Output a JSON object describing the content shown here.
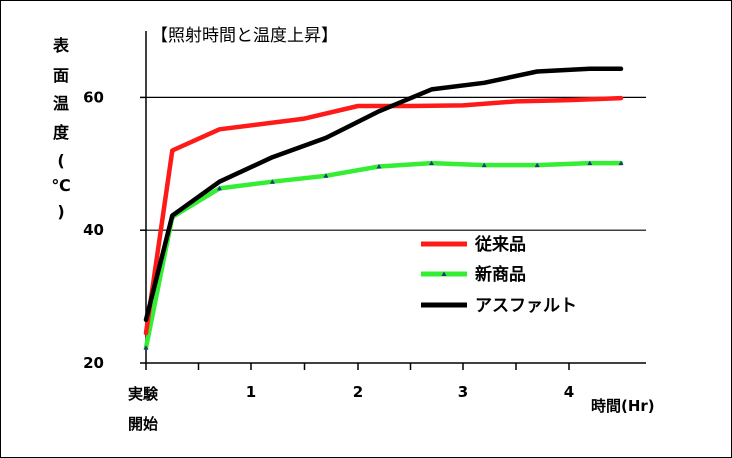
{
  "chart_data": {
    "type": "line",
    "title": "【照射時間と温度上昇】",
    "ylabel": "表面温度(℃)",
    "xlabel": "時間(Hr)",
    "ylim": [
      20,
      70
    ],
    "xlim": [
      0,
      4.5
    ],
    "grid_y": [
      40,
      60
    ],
    "y_ticks": [
      "20",
      "40",
      "60"
    ],
    "x_ticks": [
      {
        "x": 0,
        "label": "実験\n開始"
      },
      {
        "x": 1,
        "label": "1"
      },
      {
        "x": 2,
        "label": "2"
      },
      {
        "x": 3,
        "label": "3"
      },
      {
        "x": 4,
        "label": "4"
      }
    ],
    "legend_position": "right",
    "series": [
      {
        "name": "従来品",
        "color": "#ff1a1a",
        "x": [
          0,
          0.25,
          0.7,
          1.5,
          2.0,
          2.5,
          3.0,
          3.5,
          4.0,
          4.5
        ],
        "y": [
          24.5,
          52,
          55.2,
          56.8,
          58.7,
          58.7,
          58.8,
          59.4,
          59.6,
          59.9
        ]
      },
      {
        "name": "新商品",
        "color": "#33ee33",
        "marker_color": "#1f3a7a",
        "x": [
          0,
          0.25,
          0.7,
          1.2,
          1.7,
          2.2,
          2.7,
          3.2,
          3.7,
          4.2,
          4.5
        ],
        "y": [
          22.3,
          42,
          46.3,
          47.3,
          48.2,
          49.6,
          50.1,
          49.8,
          49.8,
          50.1,
          50.1
        ],
        "marker_x": [
          0,
          0.25,
          0.7,
          1.2,
          1.7,
          2.2,
          2.7,
          3.2,
          3.7,
          4.2,
          4.5
        ]
      },
      {
        "name": "アスファルト",
        "color": "#000000",
        "x": [
          0,
          0.25,
          0.7,
          1.2,
          1.7,
          2.2,
          2.7,
          3.2,
          3.7,
          4.2,
          4.5
        ],
        "y": [
          26.5,
          42.2,
          47.3,
          51,
          53.9,
          57.9,
          61.2,
          62.2,
          63.9,
          64.3,
          64.3
        ]
      }
    ]
  }
}
